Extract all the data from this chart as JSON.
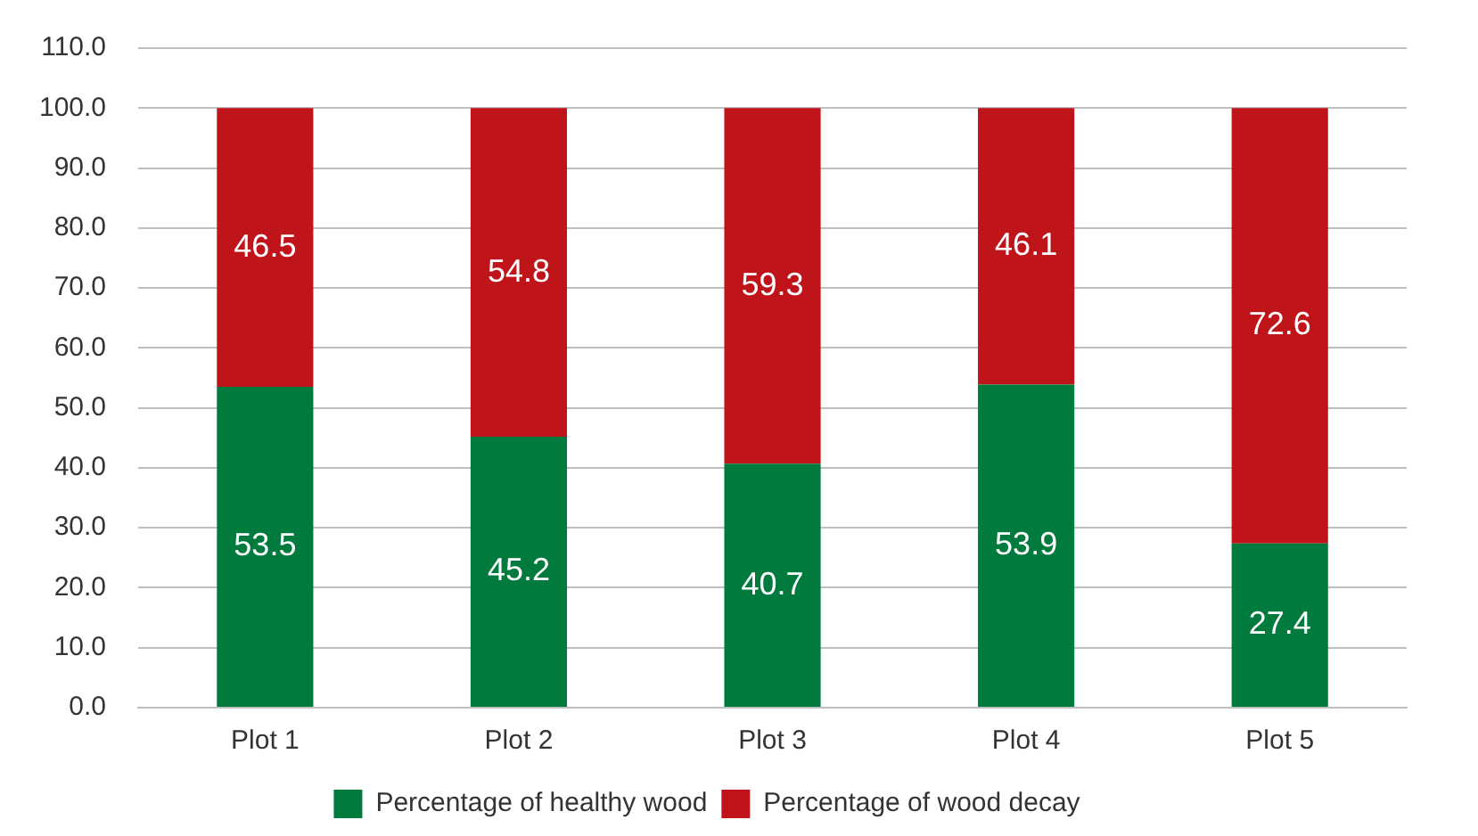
{
  "chart_data": {
    "type": "bar",
    "stacked": true,
    "categories": [
      "Plot 1",
      "Plot 2",
      "Plot 3",
      "Plot 4",
      "Plot 5"
    ],
    "series": [
      {
        "name": "Percentage of healthy wood",
        "color": "#007a3d",
        "values": [
          53.5,
          45.2,
          40.7,
          53.9,
          27.4
        ]
      },
      {
        "name": "Percentage of wood decay",
        "color": "#c0141b",
        "values": [
          46.5,
          54.8,
          59.3,
          46.1,
          72.6
        ]
      }
    ],
    "ylim": [
      0,
      110
    ],
    "yticks": [
      {
        "value": 0,
        "label": "0.0"
      },
      {
        "value": 10,
        "label": "10.0"
      },
      {
        "value": 20,
        "label": "20.0"
      },
      {
        "value": 30,
        "label": "30.0"
      },
      {
        "value": 40,
        "label": "40.0"
      },
      {
        "value": 50,
        "label": "50.0"
      },
      {
        "value": 60,
        "label": "60.0"
      },
      {
        "value": 70,
        "label": "70.0"
      },
      {
        "value": 80,
        "label": "80.0"
      },
      {
        "value": 90,
        "label": "90.0"
      },
      {
        "value": 100,
        "label": "100.0"
      },
      {
        "value": 110,
        "label": "110.0"
      }
    ],
    "grid": "y",
    "legend": "bottom",
    "data_labels": true
  }
}
